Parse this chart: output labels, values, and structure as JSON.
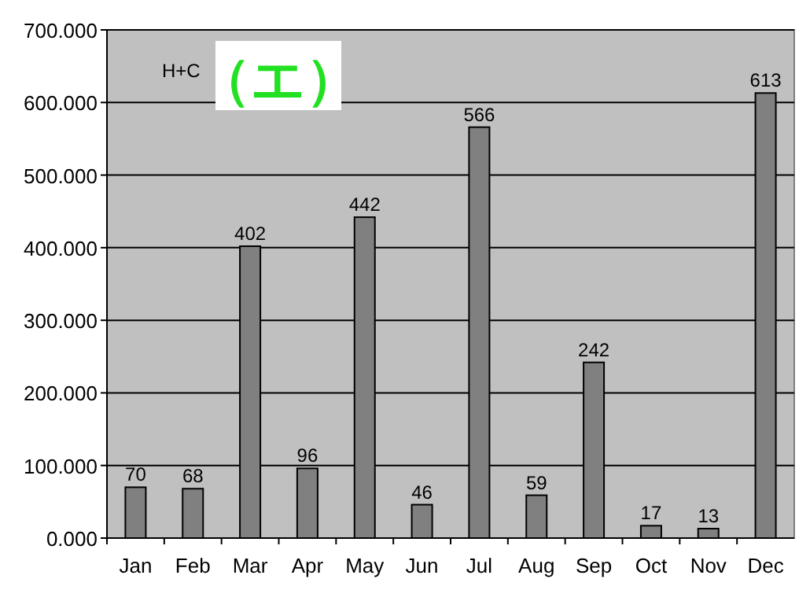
{
  "chart_data": {
    "type": "bar",
    "categories": [
      "Jan",
      "Feb",
      "Mar",
      "Apr",
      "May",
      "Jun",
      "Jul",
      "Aug",
      "Sep",
      "Oct",
      "Nov",
      "Dec"
    ],
    "values": [
      70,
      68,
      402,
      96,
      442,
      46,
      566,
      59,
      242,
      17,
      13,
      613
    ],
    "color": "#808080",
    "ylim": [
      0,
      700
    ],
    "yticks": [
      {
        "value": 0,
        "label": "0.000"
      },
      {
        "value": 100,
        "label": "100.000"
      },
      {
        "value": 200,
        "label": "200.000"
      },
      {
        "value": 300,
        "label": "300.000"
      },
      {
        "value": 400,
        "label": "400.000"
      },
      {
        "value": 500,
        "label": "500.000"
      },
      {
        "value": 600,
        "label": "600.000"
      },
      {
        "value": 700,
        "label": "700.000"
      }
    ],
    "grid": "y",
    "data_labels": true,
    "annotations": [
      "H+C",
      "（エ）"
    ]
  }
}
